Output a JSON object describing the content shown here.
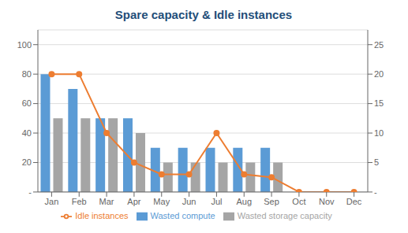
{
  "chart_data": {
    "type": "bar",
    "title": "Spare capacity & Idle instances",
    "categories": [
      "Jan",
      "Feb",
      "Mar",
      "Apr",
      "May",
      "Jun",
      "Jul",
      "Aug",
      "Sep",
      "Oct",
      "Nov",
      "Dec"
    ],
    "series": [
      {
        "name": "Wasted compute",
        "type": "bar",
        "color": "#5B9BD5",
        "values": [
          80,
          70,
          50,
          50,
          30,
          30,
          30,
          30,
          30,
          0,
          0,
          0
        ]
      },
      {
        "name": "Wasted storage capacity",
        "type": "bar",
        "color": "#A5A5A5",
        "values": [
          50,
          50,
          50,
          40,
          20,
          20,
          20,
          20,
          20,
          0,
          0,
          0
        ]
      },
      {
        "name": "Idle instances",
        "type": "line",
        "color": "#ED7D31",
        "marker": "circle",
        "axis": "y2",
        "values": [
          20,
          20,
          10,
          5,
          3,
          3,
          10,
          3,
          2.5,
          0,
          0,
          0
        ]
      }
    ],
    "ylim": [
      0,
      110
    ],
    "yticks": [
      {
        "value": 0,
        "label": "-"
      },
      20,
      40,
      60,
      80,
      100
    ],
    "y2lim": [
      0,
      27.5
    ],
    "y2ticks": [
      {
        "value": 0,
        "label": "-"
      },
      5,
      10,
      15,
      20,
      25
    ],
    "grid": true,
    "legend": "bottom"
  }
}
